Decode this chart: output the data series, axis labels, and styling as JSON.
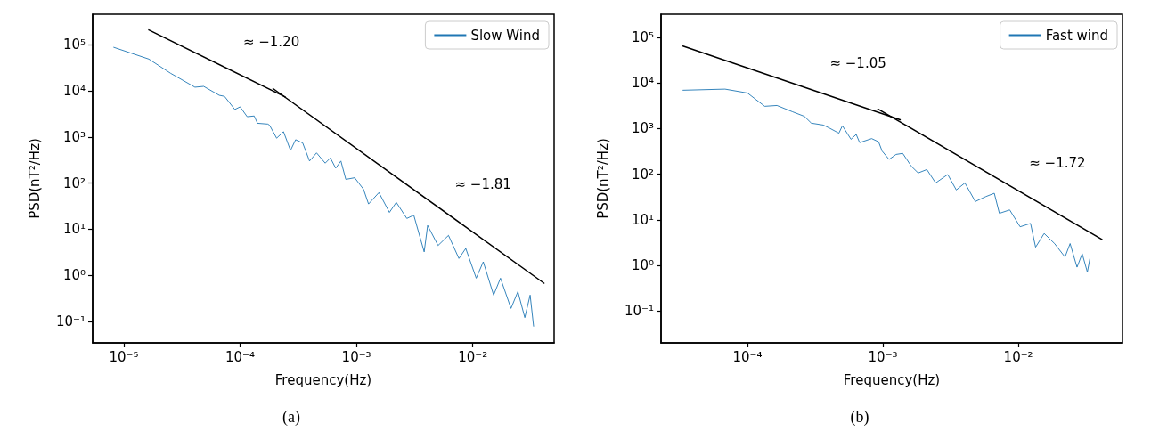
{
  "chart_data": [
    {
      "type": "line",
      "xlabel": "Frequency(Hz)",
      "ylabel": "PSD(nT²/Hz)",
      "log": "xy",
      "grid": false,
      "legend": "top right",
      "marker": "none",
      "xlim": [
        5.4e-06,
        0.05
      ],
      "ylim": [
        0.034,
        460000
      ],
      "xticks": [
        {
          "value": 1e-05,
          "label": "10⁻⁵"
        },
        {
          "value": 0.0001,
          "label": "10⁻⁴"
        },
        {
          "value": 0.001,
          "label": "10⁻³"
        },
        {
          "value": 0.01,
          "label": "10⁻²"
        }
      ],
      "yticks": [
        {
          "value": 0.1,
          "label": "10⁻¹"
        },
        {
          "value": 1,
          "label": "10⁰"
        },
        {
          "value": 10,
          "label": "10¹"
        },
        {
          "value": 100,
          "label": "10²"
        },
        {
          "value": 1000,
          "label": "10³"
        },
        {
          "value": 10000,
          "label": "10⁴"
        },
        {
          "value": 100000,
          "label": "10⁵"
        }
      ],
      "series": [
        {
          "name": "Slow Wind",
          "color": "#1f77b4",
          "x": [
            8.2e-06,
            1.64e-05,
            2.53e-05,
            4.09e-05,
            4.86e-05,
            6.62e-05,
            7.34e-05,
            9e-05,
            0.0001,
            0.000115,
            0.000132,
            0.000141,
            0.000173,
            0.000179,
            0.000206,
            0.000236,
            0.000271,
            0.0003,
            0.000345,
            0.000395,
            0.000454,
            0.000539,
            0.000597,
            0.000663,
            0.000735,
            0.00081,
            0.000966,
            0.00115,
            0.00127,
            0.00156,
            0.00192,
            0.0022,
            0.00271,
            0.00311,
            0.00382,
            0.00409,
            0.00503,
            0.00618,
            0.0076,
            0.0087,
            0.0107,
            0.0123,
            0.0151,
            0.0173,
            0.0213,
            0.0244,
            0.028,
            0.0311,
            0.0333
          ],
          "values": [
            88000,
            49000,
            24000,
            12000,
            12500,
            8000,
            7600,
            3950,
            4500,
            2750,
            2850,
            1980,
            1900,
            1800,
            940,
            1300,
            510,
            870,
            740,
            300,
            450,
            270,
            350,
            210,
            300,
            120,
            130,
            73,
            35,
            62,
            23,
            38,
            17,
            20,
            3.2,
            12,
            4.4,
            7.3,
            2.3,
            3.8,
            0.86,
            1.95,
            0.37,
            0.86,
            0.19,
            0.44,
            0.12,
            0.37,
            0.078
          ]
        },
        {
          "type": "line",
          "color": "#000000",
          "x": [
            1.64e-05,
            0.000244
          ],
          "values": [
            210000,
            7400
          ]
        },
        {
          "type": "line",
          "color": "#000000",
          "x": [
            0.000192,
            0.0409
          ],
          "values": [
            11200,
            0.67
          ]
        }
      ],
      "annotations": [
        "≈ −1.20",
        "≈ −1.81",
        "(a)"
      ]
    },
    {
      "type": "line",
      "xlabel": "Frequency(Hz)",
      "ylabel": "PSD(nT²/Hz)",
      "log": "xy",
      "grid": false,
      "legend": "top right",
      "marker": "none",
      "xlim": [
        2.3e-05,
        0.0587
      ],
      "ylim": [
        0.02,
        320000
      ],
      "xticks": [
        {
          "value": 0.0001,
          "label": "10⁻⁴"
        },
        {
          "value": 0.001,
          "label": "10⁻³"
        },
        {
          "value": 0.01,
          "label": "10⁻²"
        }
      ],
      "yticks": [
        {
          "value": 0.1,
          "label": "10⁻¹"
        },
        {
          "value": 1,
          "label": "10⁰"
        },
        {
          "value": 10,
          "label": "10¹"
        },
        {
          "value": 100,
          "label": "10²"
        },
        {
          "value": 1000,
          "label": "10³"
        },
        {
          "value": 10000,
          "label": "10⁴"
        },
        {
          "value": 100000,
          "label": "10⁵"
        }
      ],
      "series": [
        {
          "name": "Fast wind",
          "color": "#1f77b4",
          "x": [
            3.34e-05,
            6.83e-05,
            0.0001,
            0.000134,
            0.000165,
            0.000214,
            0.000263,
            0.000296,
            0.000363,
            0.000408,
            0.000473,
            0.000502,
            0.000581,
            0.000635,
            0.000673,
            0.000826,
            0.000929,
            0.000986,
            0.00111,
            0.00125,
            0.0014,
            0.00162,
            0.00182,
            0.00211,
            0.00245,
            0.00301,
            0.00348,
            0.00403,
            0.00481,
            0.00573,
            0.00664,
            0.00724,
            0.00863,
            0.0103,
            0.0123,
            0.0134,
            0.0155,
            0.0185,
            0.0221,
            0.0241,
            0.0271,
            0.0296,
            0.0323,
            0.0337
          ],
          "values": [
            6900,
            7300,
            6000,
            3070,
            3200,
            2340,
            1850,
            1310,
            1190,
            1000,
            790,
            1150,
            580,
            740,
            490,
            600,
            510,
            320,
            210,
            270,
            285,
            149,
            106,
            126,
            64,
            98,
            45,
            64,
            25,
            32,
            38,
            13.8,
            16.4,
            7.0,
            8.3,
            2.5,
            5.0,
            3.0,
            1.52,
            3.0,
            0.91,
            1.8,
            0.71,
            1.39
          ]
        },
        {
          "type": "line",
          "color": "#000000",
          "x": [
            3.34e-05,
            0.00134
          ],
          "values": [
            64000,
            1560
          ]
        },
        {
          "type": "line",
          "color": "#000000",
          "x": [
            0.000918,
            0.0414
          ],
          "values": [
            2680,
            3.7
          ]
        }
      ],
      "annotations": [
        "≈ −1.05",
        "≈ −1.72",
        "(b)"
      ]
    }
  ]
}
